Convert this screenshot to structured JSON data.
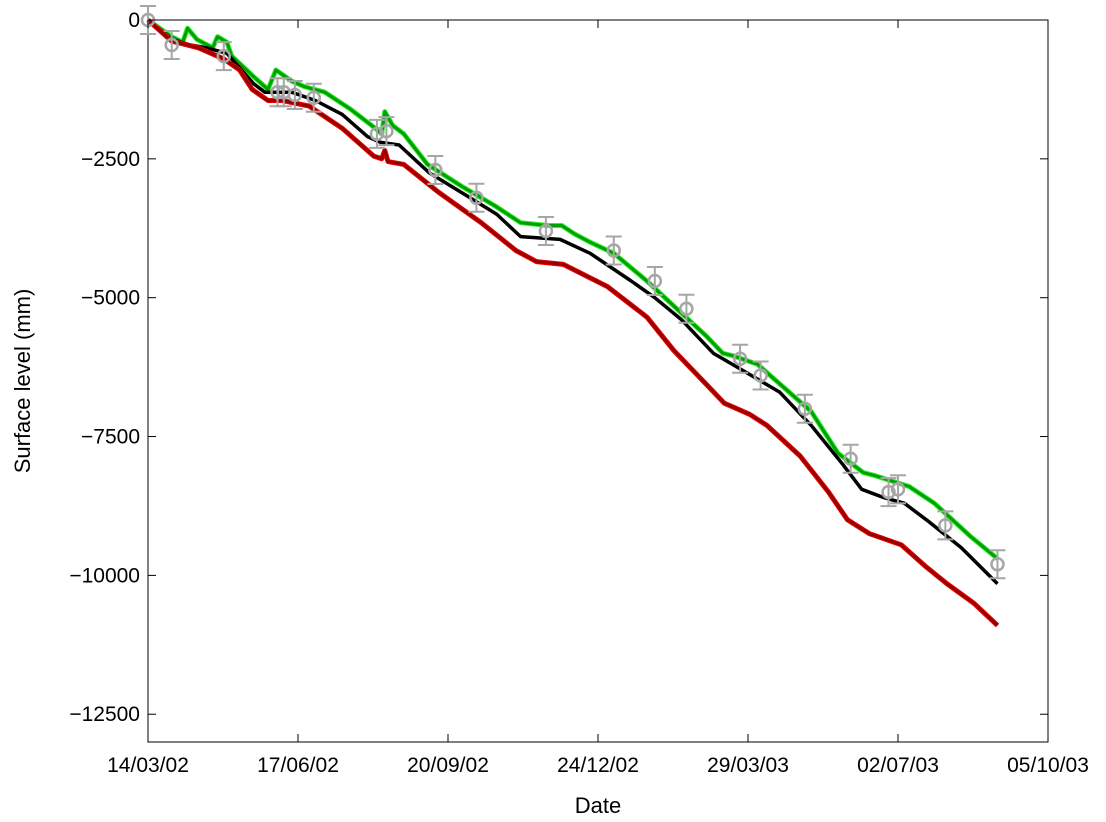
{
  "chart_data": {
    "type": "line",
    "title": "",
    "xlabel": "Date",
    "ylabel": "Surface level (mm)",
    "xlim": [
      "2002-03-14",
      "2003-10-05"
    ],
    "ylim": [
      -13000,
      0
    ],
    "x_ticks": [
      "14/03/02",
      "17/06/02",
      "20/09/02",
      "24/12/02",
      "29/03/03",
      "02/07/03",
      "05/10/03"
    ],
    "y_ticks": [
      0,
      -2500,
      -5000,
      -7500,
      -10000,
      -12500
    ],
    "y_tick_labels": [
      "0",
      "−2500",
      "−5000",
      "−7500",
      "−10000",
      "−12500"
    ],
    "grid": false,
    "legend": "none",
    "series": [
      {
        "color": "#00a000",
        "highlight_color": "#33ee33",
        "points": [
          [
            "2002-03-14",
            0
          ],
          [
            "2002-03-29",
            -300
          ],
          [
            "2002-04-05",
            -400
          ],
          [
            "2002-04-08",
            -150
          ],
          [
            "2002-04-14",
            -350
          ],
          [
            "2002-04-24",
            -500
          ],
          [
            "2002-04-27",
            -300
          ],
          [
            "2002-05-03",
            -400
          ],
          [
            "2002-05-06",
            -650
          ],
          [
            "2002-05-21",
            -1050
          ],
          [
            "2002-05-29",
            -1250
          ],
          [
            "2002-06-03",
            -900
          ],
          [
            "2002-06-13",
            -1100
          ],
          [
            "2002-06-21",
            -1200
          ],
          [
            "2002-07-04",
            -1300
          ],
          [
            "2002-07-20",
            -1600
          ],
          [
            "2002-08-05",
            -1950
          ],
          [
            "2002-08-09",
            -2050
          ],
          [
            "2002-08-11",
            -1650
          ],
          [
            "2002-08-16",
            -1900
          ],
          [
            "2002-08-23",
            -2050
          ],
          [
            "2002-09-07",
            -2600
          ],
          [
            "2002-09-29",
            -3000
          ],
          [
            "2002-10-20",
            -3350
          ],
          [
            "2002-11-05",
            -3650
          ],
          [
            "2002-11-22",
            -3700
          ],
          [
            "2002-12-01",
            -3700
          ],
          [
            "2002-12-09",
            -3850
          ],
          [
            "2002-12-19",
            -4000
          ],
          [
            "2003-01-03",
            -4200
          ],
          [
            "2003-01-24",
            -4700
          ],
          [
            "2003-02-10",
            -5150
          ],
          [
            "2003-03-03",
            -5700
          ],
          [
            "2003-03-13",
            -6000
          ],
          [
            "2003-03-20",
            -6050
          ],
          [
            "2003-04-04",
            -6200
          ],
          [
            "2003-04-18",
            -6550
          ],
          [
            "2003-05-08",
            -7050
          ],
          [
            "2003-05-25",
            -7800
          ],
          [
            "2003-06-10",
            -8150
          ],
          [
            "2003-06-17",
            -8200
          ],
          [
            "2003-06-28",
            -8300
          ],
          [
            "2003-07-09",
            -8400
          ],
          [
            "2003-07-25",
            -8700
          ],
          [
            "2003-08-17",
            -9300
          ],
          [
            "2003-09-03",
            -9700
          ]
        ]
      },
      {
        "color": "#000000",
        "points": [
          [
            "2002-03-14",
            0
          ],
          [
            "2002-03-29",
            -350
          ],
          [
            "2002-04-10",
            -450
          ],
          [
            "2002-04-20",
            -500
          ],
          [
            "2002-05-03",
            -600
          ],
          [
            "2002-05-06",
            -700
          ],
          [
            "2002-05-20",
            -1150
          ],
          [
            "2002-05-27",
            -1300
          ],
          [
            "2002-06-13",
            -1300
          ],
          [
            "2002-06-28",
            -1450
          ],
          [
            "2002-07-15",
            -1700
          ],
          [
            "2002-07-31",
            -2100
          ],
          [
            "2002-08-08",
            -2200
          ],
          [
            "2002-08-20",
            -2250
          ],
          [
            "2002-09-08",
            -2750
          ],
          [
            "2002-10-01",
            -3150
          ],
          [
            "2002-10-21",
            -3500
          ],
          [
            "2002-11-05",
            -3900
          ],
          [
            "2002-11-30",
            -3950
          ],
          [
            "2002-12-19",
            -4200
          ],
          [
            "2003-01-14",
            -4700
          ],
          [
            "2003-01-29",
            -5000
          ],
          [
            "2003-02-15",
            -5400
          ],
          [
            "2003-03-07",
            -6000
          ],
          [
            "2003-03-19",
            -6200
          ],
          [
            "2003-03-31",
            -6400
          ],
          [
            "2003-04-18",
            -6700
          ],
          [
            "2003-05-08",
            -7300
          ],
          [
            "2003-05-28",
            -8000
          ],
          [
            "2003-06-09",
            -8450
          ],
          [
            "2003-06-23",
            -8600
          ],
          [
            "2003-07-06",
            -8700
          ],
          [
            "2003-07-20",
            -9000
          ],
          [
            "2003-08-11",
            -9500
          ],
          [
            "2003-09-03",
            -10150
          ]
        ]
      },
      {
        "color": "#990000",
        "highlight_color": "#ee0000",
        "points": [
          [
            "2002-03-14",
            0
          ],
          [
            "2002-03-29",
            -380
          ],
          [
            "2002-04-15",
            -500
          ],
          [
            "2002-05-01",
            -700
          ],
          [
            "2002-05-11",
            -900
          ],
          [
            "2002-05-19",
            -1250
          ],
          [
            "2002-05-29",
            -1450
          ],
          [
            "2002-06-07",
            -1450
          ],
          [
            "2002-06-24",
            -1550
          ],
          [
            "2002-07-15",
            -1950
          ],
          [
            "2002-08-04",
            -2450
          ],
          [
            "2002-08-09",
            -2500
          ],
          [
            "2002-08-11",
            -2350
          ],
          [
            "2002-08-13",
            -2550
          ],
          [
            "2002-08-23",
            -2600
          ],
          [
            "2002-09-14",
            -3100
          ],
          [
            "2002-10-11",
            -3650
          ],
          [
            "2002-11-02",
            -4150
          ],
          [
            "2002-11-15",
            -4350
          ],
          [
            "2002-12-02",
            -4400
          ],
          [
            "2002-12-30",
            -4800
          ],
          [
            "2003-01-24",
            -5350
          ],
          [
            "2003-02-10",
            -5950
          ],
          [
            "2003-03-04",
            -6600
          ],
          [
            "2003-03-14",
            -6900
          ],
          [
            "2003-03-30",
            -7100
          ],
          [
            "2003-04-10",
            -7300
          ],
          [
            "2003-05-01",
            -7850
          ],
          [
            "2003-05-19",
            -8500
          ],
          [
            "2003-05-31",
            -9000
          ],
          [
            "2003-06-14",
            -9250
          ],
          [
            "2003-07-04",
            -9450
          ],
          [
            "2003-07-20",
            -9850
          ],
          [
            "2003-08-02",
            -10150
          ],
          [
            "2003-08-19",
            -10500
          ],
          [
            "2003-09-03",
            -10900
          ]
        ]
      },
      {
        "type": "scatter",
        "marker": "circle",
        "error_bars": true,
        "color": "#a6a6a6",
        "points": [
          [
            "2002-03-14",
            0
          ],
          [
            "2002-03-29",
            -450
          ],
          [
            "2002-05-01",
            -650
          ],
          [
            "2002-06-04",
            -1300
          ],
          [
            "2002-06-08",
            -1300
          ],
          [
            "2002-06-15",
            -1350
          ],
          [
            "2002-06-27",
            -1400
          ],
          [
            "2002-08-06",
            -2050
          ],
          [
            "2002-08-12",
            -2000
          ],
          [
            "2002-09-12",
            -2700
          ],
          [
            "2002-10-08",
            -3200
          ],
          [
            "2002-11-21",
            -3800
          ],
          [
            "2003-01-03",
            -4150
          ],
          [
            "2003-01-29",
            -4700
          ],
          [
            "2003-02-18",
            -5200
          ],
          [
            "2003-03-24",
            -6100
          ],
          [
            "2003-04-06",
            -6400
          ],
          [
            "2003-05-04",
            -7000
          ],
          [
            "2003-06-02",
            -7900
          ],
          [
            "2003-06-26",
            -8500
          ],
          [
            "2003-07-02",
            -8450
          ],
          [
            "2003-08-01",
            -9100
          ],
          [
            "2003-09-03",
            -9800
          ]
        ]
      }
    ]
  }
}
